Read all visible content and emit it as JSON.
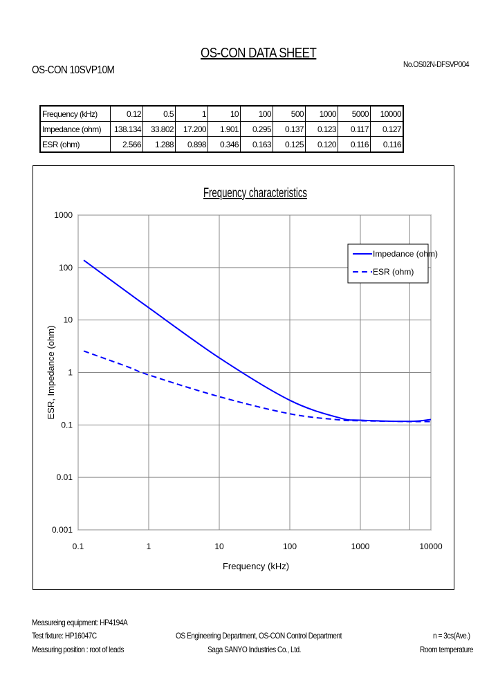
{
  "header": {
    "title": "OS-CON DATA SHEET",
    "model": "OS-CON 10SVP10M",
    "doc_no": "No.OS02N-DFSVP004"
  },
  "table": {
    "rows": [
      {
        "label": "Frequency (kHz)",
        "values": [
          "0.12",
          "0.5",
          "1",
          "10",
          "100",
          "500",
          "1000",
          "5000",
          "10000"
        ]
      },
      {
        "label": "Impedance (ohm)",
        "values": [
          "138.134",
          "33.802",
          "17.200",
          "1.901",
          "0.295",
          "0.137",
          "0.123",
          "0.117",
          "0.127"
        ]
      },
      {
        "label": "ESR (ohm)",
        "values": [
          "2.566",
          "1.288",
          "0.898",
          "0.346",
          "0.163",
          "0.125",
          "0.120",
          "0.116",
          "0.116"
        ]
      }
    ]
  },
  "chart_data": {
    "type": "line",
    "title": "Frequency characteristics",
    "xlabel": "Frequency (kHz)",
    "ylabel": "ESR, Impedance (ohm)",
    "xscale": "log",
    "yscale": "log",
    "xlim": [
      0.1,
      10000
    ],
    "ylim": [
      0.001,
      1000
    ],
    "xticks": [
      "0.1",
      "1",
      "10",
      "100",
      "1000",
      "10000"
    ],
    "yticks": [
      "1000",
      "100",
      "10",
      "1",
      "0.1",
      "0.01",
      "0.001"
    ],
    "grid": true,
    "legend": "top-right",
    "x": [
      0.12,
      0.5,
      1,
      10,
      100,
      500,
      1000,
      5000,
      10000
    ],
    "series": [
      {
        "name": "Impedance (ohm)",
        "style": "solid",
        "color": "#0000ff",
        "values": [
          138.134,
          33.802,
          17.2,
          1.901,
          0.295,
          0.137,
          0.123,
          0.117,
          0.127
        ]
      },
      {
        "name": "ESR (ohm)",
        "style": "dashed",
        "color": "#0000ff",
        "values": [
          2.566,
          1.288,
          0.898,
          0.346,
          0.163,
          0.125,
          0.12,
          0.116,
          0.116
        ]
      }
    ]
  },
  "footer": {
    "equipment": "Measureing equipment: HP4194A",
    "fixture": "Test fixture: HP16047C",
    "position": "Measuring position : root of leads",
    "department": "OS Engineering Department, OS-CON Control Department",
    "company": "Saga SANYO Industries Co., Ltd.",
    "samples": "n = 3cs(Ave.)",
    "temperature": "Room temperature"
  }
}
